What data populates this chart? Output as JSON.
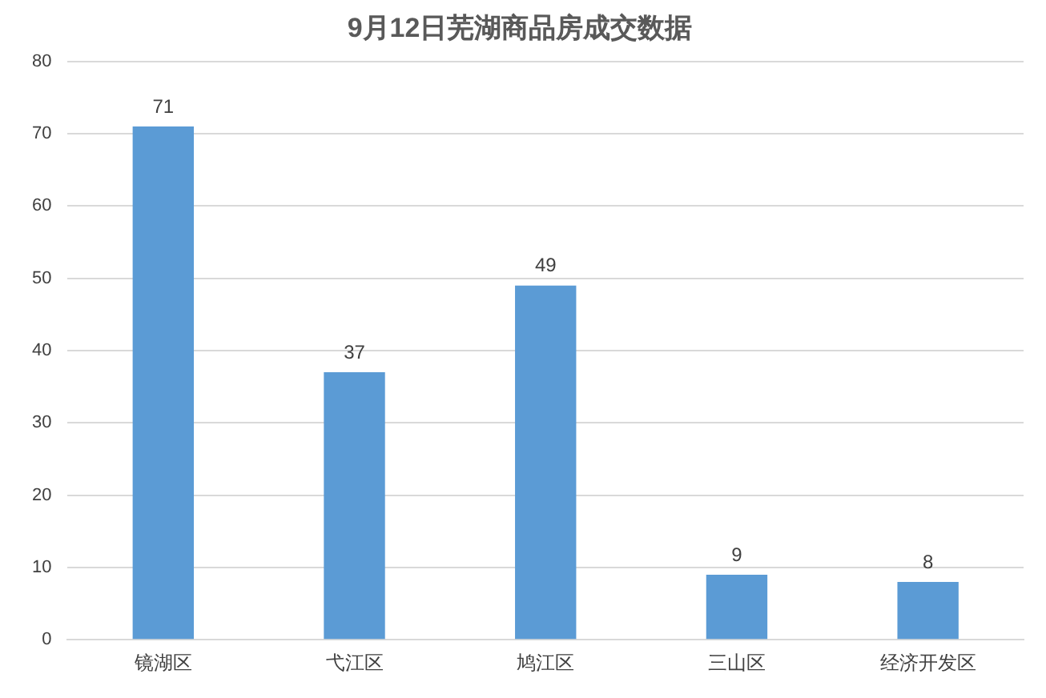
{
  "chart_data": {
    "type": "bar",
    "title": "9月12日芜湖商品房成交数据",
    "categories": [
      "镜湖区",
      "弋江区",
      "鸠江区",
      "三山区",
      "经济开发区"
    ],
    "values": [
      71,
      37,
      49,
      9,
      8
    ],
    "color": "#5b9bd5",
    "ylim": [
      0,
      80
    ],
    "yticks": [
      0,
      10,
      20,
      30,
      40,
      50,
      60,
      70,
      80
    ],
    "grid": "y",
    "data_labels": true
  }
}
